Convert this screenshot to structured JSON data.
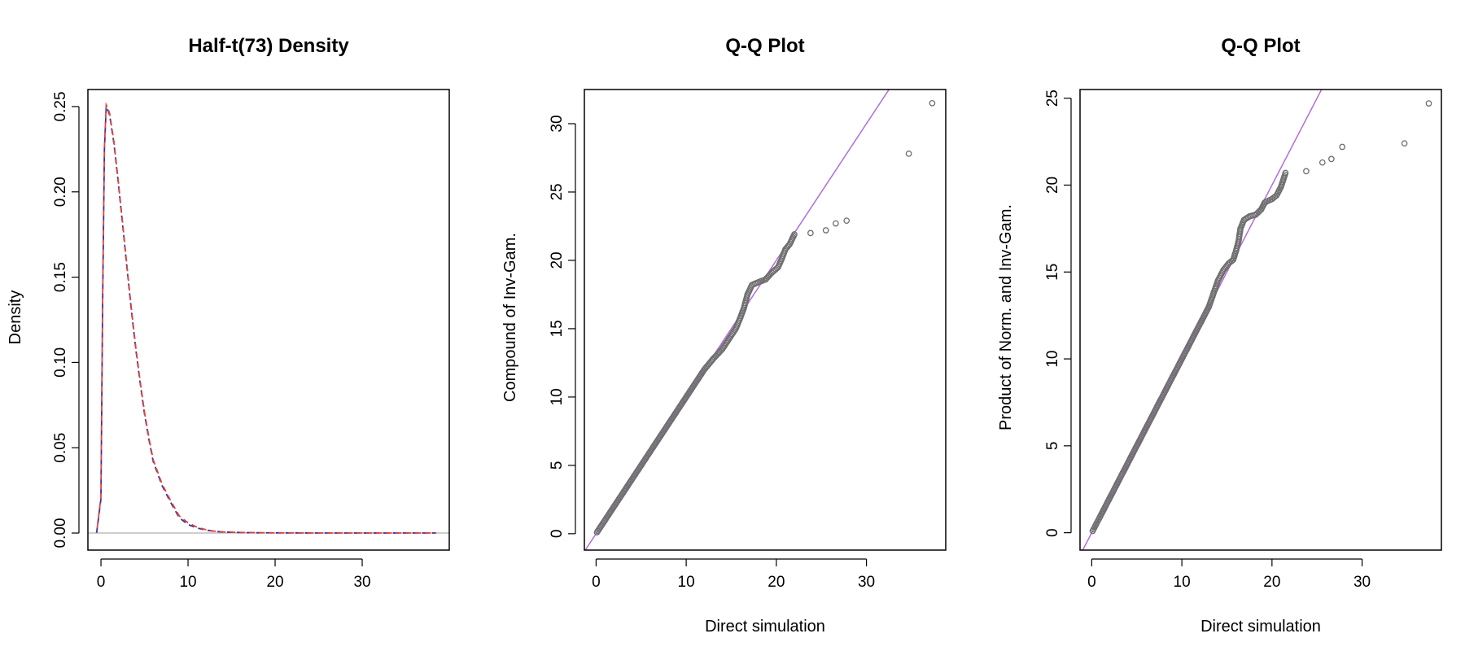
{
  "colors": {
    "density_line_1": "#3a2fa0",
    "density_line_2": "#e0453a",
    "baseline": "#b0b0b0",
    "qq_reference": "#b36be0",
    "qq_points": "#6e6e6e",
    "frame": "#000000"
  },
  "chart_data": [
    {
      "type": "line",
      "title": "Half-t(73) Density",
      "xlabel": "",
      "ylabel": "Density",
      "xlim": [
        -1.5,
        40
      ],
      "ylim": [
        -0.01,
        0.26
      ],
      "xticks": [
        0,
        10,
        20,
        30
      ],
      "yticks": [
        0.0,
        0.05,
        0.1,
        0.15,
        0.2,
        0.25
      ],
      "ytick_labels": [
        "0.00",
        "0.05",
        "0.10",
        "0.15",
        "0.20",
        "0.25"
      ],
      "line_style": "dashed",
      "series": [
        {
          "x": [
            -0.5,
            0,
            0.2,
            0.4,
            0.6,
            0.8,
            1.0,
            1.5,
            2.0,
            2.5,
            3.0,
            3.5,
            4.0,
            4.5,
            5.0,
            5.5,
            6.0,
            6.5,
            7.0,
            8.0,
            9.0,
            10.0,
            11.0,
            12.0,
            13.0,
            14.0,
            16.0,
            18.0,
            20.0,
            25.0,
            30.0,
            35.0,
            38.5
          ],
          "y": [
            0.0,
            0.02,
            0.14,
            0.225,
            0.25,
            0.248,
            0.245,
            0.228,
            0.205,
            0.18,
            0.155,
            0.13,
            0.108,
            0.088,
            0.07,
            0.055,
            0.042,
            0.035,
            0.028,
            0.018,
            0.009,
            0.005,
            0.003,
            0.0018,
            0.001,
            0.0006,
            0.0003,
            0.00015,
            0.0001,
            3e-05,
            1e-05,
            0.0,
            0.0
          ]
        },
        {
          "x": [
            -0.5,
            0,
            0.2,
            0.4,
            0.6,
            0.8,
            1.0,
            1.5,
            2.0,
            2.5,
            3.0,
            3.5,
            4.0,
            4.5,
            5.0,
            5.5,
            6.0,
            6.5,
            7.0,
            8.0,
            9.0,
            10.0,
            11.0,
            12.0,
            13.0,
            14.0,
            16.0,
            18.0,
            20.0,
            25.0,
            30.0,
            35.0,
            38.5
          ],
          "y": [
            0.0,
            0.021,
            0.142,
            0.226,
            0.251,
            0.249,
            0.246,
            0.229,
            0.206,
            0.181,
            0.156,
            0.131,
            0.109,
            0.089,
            0.071,
            0.056,
            0.043,
            0.036,
            0.029,
            0.019,
            0.01,
            0.006,
            0.0035,
            0.002,
            0.0011,
            0.0007,
            0.00035,
            0.0002,
            0.0001,
            3e-05,
            1e-05,
            0.0,
            0.0
          ]
        }
      ]
    },
    {
      "type": "scatter",
      "title": "Q-Q Plot",
      "xlabel": "Direct simulation",
      "ylabel": "Compound of Inv-Gam.",
      "xlim": [
        -1.3,
        38.8
      ],
      "ylim": [
        -1.2,
        32.5
      ],
      "xticks": [
        0,
        10,
        20,
        30
      ],
      "yticks": [
        0,
        5,
        10,
        15,
        20,
        25,
        30
      ],
      "reference_line": {
        "slope": 1,
        "intercept": 0
      },
      "points": [
        [
          0.1,
          0.1
        ],
        [
          0.5,
          0.5
        ],
        [
          1,
          1
        ],
        [
          2,
          2
        ],
        [
          3,
          3
        ],
        [
          4,
          4
        ],
        [
          5,
          5
        ],
        [
          6,
          6
        ],
        [
          7,
          7
        ],
        [
          8,
          8
        ],
        [
          9,
          9
        ],
        [
          10,
          10
        ],
        [
          11,
          11
        ],
        [
          12,
          12
        ],
        [
          13,
          12.8
        ],
        [
          14,
          13.5
        ],
        [
          15,
          14.5
        ],
        [
          15.5,
          15
        ],
        [
          16,
          15.8
        ],
        [
          16.4,
          16.5
        ],
        [
          16.8,
          17.5
        ],
        [
          17.3,
          18.2
        ],
        [
          18,
          18.4
        ],
        [
          18.8,
          18.6
        ],
        [
          19.5,
          19.1
        ],
        [
          20.2,
          19.5
        ],
        [
          20.6,
          20.1
        ],
        [
          21,
          20.8
        ],
        [
          21.5,
          21.2
        ],
        [
          22,
          21.9
        ],
        [
          23.8,
          22
        ],
        [
          25.5,
          22.2
        ],
        [
          26.6,
          22.7
        ],
        [
          27.8,
          22.9
        ],
        [
          34.7,
          27.8
        ],
        [
          37.3,
          31.5
        ]
      ]
    },
    {
      "type": "scatter",
      "title": "Q-Q Plot",
      "xlabel": "Direct simulation",
      "ylabel": "Product of Norm. and Inv-Gam.",
      "xlim": [
        -1.3,
        38.8
      ],
      "ylim": [
        -1.0,
        25.5
      ],
      "xticks": [
        0,
        10,
        20,
        30
      ],
      "yticks": [
        0,
        5,
        10,
        15,
        20,
        25
      ],
      "reference_line": {
        "slope": 1,
        "intercept": 0
      },
      "points": [
        [
          0.1,
          0.1
        ],
        [
          0.5,
          0.5
        ],
        [
          1,
          1
        ],
        [
          2,
          2
        ],
        [
          3,
          3
        ],
        [
          4,
          4
        ],
        [
          5,
          5
        ],
        [
          6,
          6
        ],
        [
          7,
          7
        ],
        [
          8,
          8
        ],
        [
          9,
          9
        ],
        [
          10,
          10
        ],
        [
          11,
          11
        ],
        [
          12,
          12
        ],
        [
          13,
          13
        ],
        [
          14,
          14.5
        ],
        [
          14.6,
          15.1
        ],
        [
          15.2,
          15.5
        ],
        [
          15.7,
          15.7
        ],
        [
          16,
          16.2
        ],
        [
          16.3,
          16.8
        ],
        [
          16.5,
          17.5
        ],
        [
          16.9,
          18
        ],
        [
          17.5,
          18.2
        ],
        [
          18.2,
          18.3
        ],
        [
          18.8,
          18.6
        ],
        [
          19.2,
          19
        ],
        [
          20,
          19.2
        ],
        [
          20.5,
          19.4
        ],
        [
          21,
          19.9
        ],
        [
          21.5,
          20.7
        ],
        [
          23.8,
          20.8
        ],
        [
          25.6,
          21.3
        ],
        [
          26.6,
          21.5
        ],
        [
          27.8,
          22.2
        ],
        [
          34.7,
          22.4
        ],
        [
          37.4,
          24.7
        ]
      ]
    }
  ]
}
